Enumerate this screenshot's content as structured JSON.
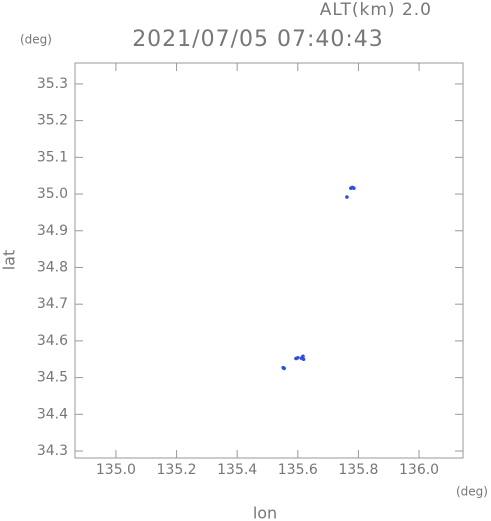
{
  "chart_data": {
    "type": "scatter",
    "title": "2021/07/05 07:40:43",
    "subtitle": "ALT(km) 2.0",
    "y_unit": "(deg)",
    "x_unit": "(deg)",
    "xlabel": "lon",
    "ylabel": "lat",
    "x": [
      135.775,
      135.78,
      135.785,
      135.762,
      135.612,
      135.617,
      135.619,
      135.6,
      135.594,
      135.552,
      135.555
    ],
    "values": [
      35.016,
      35.018,
      35.016,
      34.992,
      34.553,
      34.558,
      34.55,
      34.554,
      34.552,
      34.527,
      34.525
    ],
    "color": "#2f4fe0",
    "xlim": [
      134.865,
      136.145
    ],
    "ylim": [
      34.281,
      35.357
    ],
    "xticks": [
      {
        "value": 135.0,
        "label": "135.0"
      },
      135.2,
      135.4,
      135.6,
      135.8,
      {
        "value": 136.0,
        "label": "136.0"
      }
    ],
    "yticks": [
      34.3,
      34.4,
      34.5,
      34.6,
      34.7,
      34.8,
      34.9,
      {
        "value": 35.0,
        "label": "35.0"
      },
      35.1,
      35.2,
      35.3
    ]
  }
}
